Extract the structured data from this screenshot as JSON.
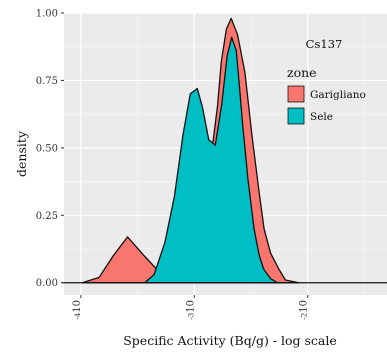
{
  "chart_data": {
    "type": "area",
    "panel_label": "Cs137",
    "xlabel": "Specific Activity (Bq/g) - log scale",
    "ylabel": "density",
    "log_x": true,
    "xlim": [
      7.1e-05,
      0.05
    ],
    "ylim": [
      -0.0455,
      1.0
    ],
    "y_ticks": [
      0.0,
      0.25,
      0.5,
      0.75,
      1.0
    ],
    "y_tick_labels": [
      "0.00",
      "0.25",
      "0.50",
      "0.75",
      "1.00"
    ],
    "x_ticks": [
      0.0001,
      0.001,
      0.01
    ],
    "x_tick_labels": [
      "10",
      "10",
      "10"
    ],
    "x_tick_exponents": [
      "-4",
      "-3",
      "-2"
    ],
    "grid": true,
    "legend": {
      "title": "zone",
      "position": "top-right"
    },
    "series": [
      {
        "name": "Garigliano",
        "color": "#F8766D",
        "x": [
          0.000103,
          0.000145,
          0.000193,
          0.000258,
          0.000361,
          0.000505,
          0.000673,
          0.000844,
          0.001018,
          0.001174,
          0.001309,
          0.00146,
          0.001607,
          0.001731,
          0.001918,
          0.002113,
          0.002405,
          0.002794,
          0.003215,
          0.003742,
          0.004123,
          0.004701,
          0.005577,
          0.006359,
          0.008337
        ],
        "y": [
          0.0,
          0.02,
          0.1,
          0.17,
          0.1,
          0.035,
          0.07,
          0.22,
          0.36,
          0.43,
          0.46,
          0.52,
          0.66,
          0.82,
          0.94,
          0.98,
          0.92,
          0.78,
          0.55,
          0.33,
          0.2,
          0.11,
          0.05,
          0.01,
          0.0
        ]
      },
      {
        "name": "Sele",
        "color": "#00BFC4",
        "x": [
          0.000366,
          0.000442,
          0.000551,
          0.000668,
          0.000796,
          0.000922,
          0.001063,
          0.001181,
          0.001341,
          0.001531,
          0.001744,
          0.001947,
          0.002137,
          0.002345,
          0.002487,
          0.002676,
          0.002978,
          0.003364,
          0.003743,
          0.004095,
          0.004705,
          0.005411
        ],
        "y": [
          0.0,
          0.03,
          0.15,
          0.32,
          0.55,
          0.7,
          0.72,
          0.65,
          0.53,
          0.51,
          0.66,
          0.84,
          0.91,
          0.86,
          0.74,
          0.58,
          0.38,
          0.2,
          0.1,
          0.05,
          0.015,
          0.0
        ]
      }
    ]
  }
}
